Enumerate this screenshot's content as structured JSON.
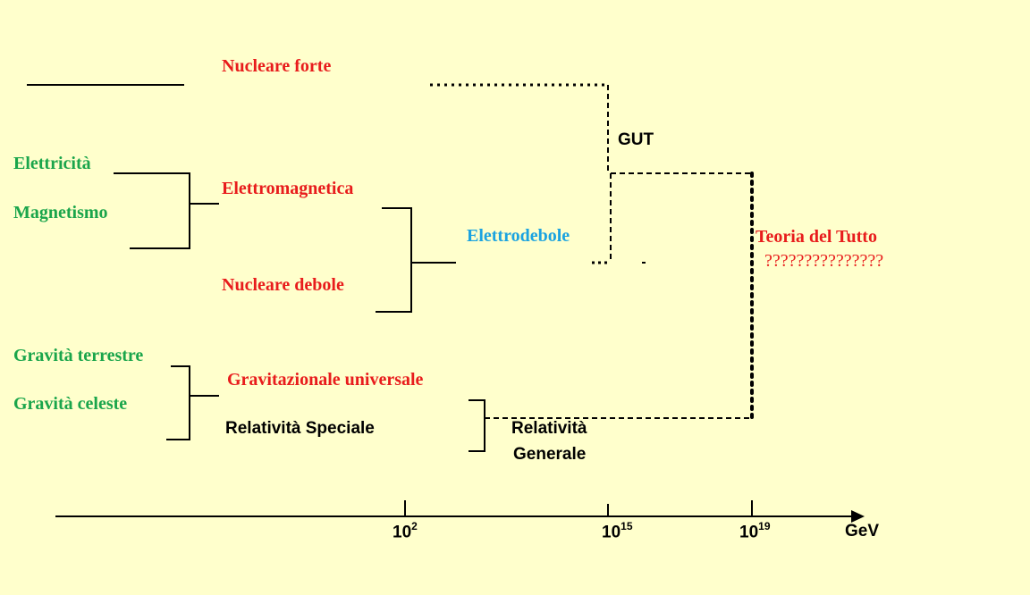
{
  "colors": {
    "background": "#ffffcc",
    "force": "#e81c1c",
    "phenomenon": "#1aa54b",
    "electroweak": "#1ba3e0",
    "theory": "#000000"
  },
  "forces": {
    "strong": "Nucleare forte",
    "electromagnetic": "Elettromagnetica",
    "weak": "Nucleare debole",
    "gravitational": "Gravitazionale universale"
  },
  "phenomena": {
    "electricity": "Elettricità",
    "magnetism": "Magnetismo",
    "terrestrial_gravity": "Gravità terrestre",
    "celestial_gravity": "Gravità celeste"
  },
  "unifications": {
    "electroweak": "Elettrodebole",
    "gut": "GUT",
    "theory_of_everything": "Teoria del Tutto",
    "toe_question": "???????????????",
    "special_relativity": "Relatività Speciale",
    "general_relativity_line1": "Relatività",
    "general_relativity_line2": "Generale"
  },
  "axis": {
    "unit": "GeV",
    "ticks": [
      {
        "base": "10",
        "exp": "2"
      },
      {
        "base": "10",
        "exp": "15"
      },
      {
        "base": "10",
        "exp": "19"
      }
    ]
  }
}
